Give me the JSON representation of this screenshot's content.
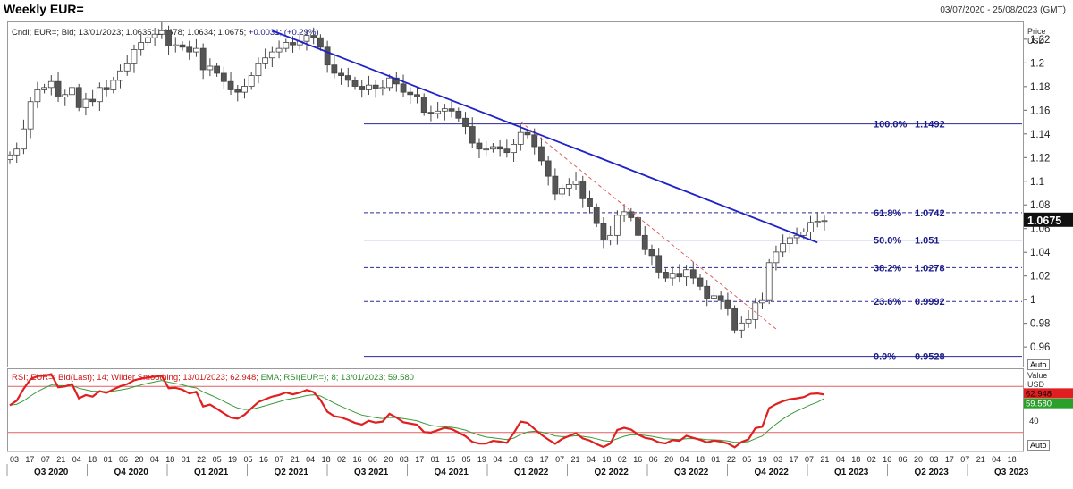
{
  "header": {
    "title": "Weekly EUR=",
    "date_range": "03/07/2020 - 25/08/2023 (GMT)"
  },
  "price_panel": {
    "legend_prefix": "Cndl; EUR=; Bid; 13/01/2023; 1.0635; 1.0678; 1.0634; 1.0675;",
    "legend_change": "+0.0031; (+0.29%)",
    "axis_title": "Price",
    "axis_unit": "USD",
    "axis_ticks": [
      "1.22",
      "1.2",
      "1.18",
      "1.16",
      "1.14",
      "1.12",
      "1.1",
      "1.08",
      "1.06",
      "1.04",
      "1.02",
      "1",
      "0.98",
      "0.96"
    ],
    "last_price_label": "1.0675",
    "auto_label": "Auto"
  },
  "rsi_panel": {
    "legend_rsi": "RSI; EUR=; Bid(Last); 14; Wilder Smoothing; 13/01/2023; 62.948;",
    "legend_ema": "EMA; RSI(EUR=); 8; 13/01/2023; 59.580",
    "axis_title": "Value",
    "axis_unit": "USD",
    "tick_40": "40",
    "rsi_last": "62.948",
    "ema_last": "59.580",
    "auto_label": "Auto"
  },
  "x_axis": {
    "weeks": [
      "03",
      "17",
      "07",
      "21",
      "04",
      "18",
      "01",
      "06",
      "20",
      "04",
      "18",
      "01",
      "22",
      "05",
      "19",
      "05",
      "16",
      "07",
      "21",
      "04",
      "18",
      "02",
      "16",
      "06",
      "20",
      "03",
      "17",
      "01",
      "15",
      "05",
      "19",
      "04",
      "18",
      "03",
      "17",
      "07",
      "21",
      "04",
      "18",
      "02",
      "16",
      "06",
      "20",
      "04",
      "18",
      "01",
      "22",
      "05",
      "19",
      "03",
      "17",
      "07",
      "21",
      "04",
      "18",
      "02",
      "16",
      "06",
      "20",
      "03",
      "17",
      "07",
      "21",
      "04",
      "18"
    ],
    "quarters": [
      "Q3 2020",
      "Q4 2020",
      "Q1 2021",
      "Q2 2021",
      "Q3 2021",
      "Q4 2021",
      "Q1 2022",
      "Q2 2022",
      "Q3 2022",
      "Q4 2022",
      "Q1 2023",
      "Q2 2023",
      "Q3 2023"
    ]
  },
  "chart_data": [
    {
      "type": "candlestick",
      "title": "Weekly EUR=",
      "ylabel": "Price USD",
      "ylim": [
        0.945,
        1.235
      ],
      "last": {
        "date": "13/01/2023",
        "open": 1.0635,
        "high": 1.0678,
        "low": 1.0634,
        "close": 1.0675,
        "change": 0.0031,
        "change_pct": 0.29
      },
      "close_series": [
        1.123,
        1.128,
        1.145,
        1.168,
        1.178,
        1.18,
        1.185,
        1.172,
        1.174,
        1.18,
        1.163,
        1.17,
        1.168,
        1.18,
        1.178,
        1.186,
        1.194,
        1.2,
        1.212,
        1.218,
        1.222,
        1.225,
        1.228,
        1.215,
        1.216,
        1.214,
        1.21,
        1.213,
        1.195,
        1.198,
        1.192,
        1.185,
        1.178,
        1.176,
        1.181,
        1.19,
        1.2,
        1.205,
        1.21,
        1.213,
        1.218,
        1.216,
        1.219,
        1.224,
        1.222,
        1.214,
        1.199,
        1.192,
        1.19,
        1.186,
        1.181,
        1.178,
        1.182,
        1.179,
        1.18,
        1.188,
        1.183,
        1.176,
        1.174,
        1.172,
        1.159,
        1.158,
        1.16,
        1.162,
        1.16,
        1.154,
        1.147,
        1.133,
        1.128,
        1.128,
        1.13,
        1.128,
        1.125,
        1.132,
        1.142,
        1.14,
        1.13,
        1.118,
        1.105,
        1.09,
        1.095,
        1.098,
        1.101,
        1.086,
        1.079,
        1.065,
        1.051,
        1.055,
        1.072,
        1.075,
        1.07,
        1.055,
        1.043,
        1.038,
        1.024,
        1.019,
        1.023,
        1.02,
        1.026,
        1.019,
        1.012,
        1.002,
        1.004,
        1.0,
        0.993,
        0.975,
        0.981,
        0.984,
        0.998,
        1.0,
        1.032,
        1.041,
        1.048,
        1.053,
        1.055,
        1.058,
        1.066,
        1.067,
        1.0675
      ],
      "fibonacci_retracement": [
        {
          "level": "100.0%",
          "price": "1.1492"
        },
        {
          "level": "61.8%",
          "price": "1.0742"
        },
        {
          "level": "50.0%",
          "price": "1.051"
        },
        {
          "level": "38.2%",
          "price": "1.0278"
        },
        {
          "level": "23.6%",
          "price": "0.9992"
        },
        {
          "level": "0.0%",
          "price": "0.9528"
        }
      ],
      "trendlines": [
        {
          "style": "solid",
          "color": "#1e22c8",
          "from": 1.228,
          "to": 1.049,
          "description": "descending trendline from 2021 high"
        },
        {
          "style": "dashed",
          "color": "#e06060",
          "from": 1.151,
          "to": 0.976,
          "description": "2022 downtrend line"
        }
      ]
    },
    {
      "type": "line",
      "title": "RSI",
      "series": [
        {
          "name": "RSI 14",
          "color": "#e02020",
          "last": 62.948
        },
        {
          "name": "EMA 8",
          "color": "#3a9a3a",
          "last": 59.58
        }
      ],
      "reference_lines": [
        70,
        30
      ]
    }
  ],
  "colors": {
    "bull_candle": "#ffffff",
    "bear_candle": "#555555",
    "fib_line": "#2a2a9a",
    "rsi": "#e02020",
    "ema": "#3a9a3a",
    "accent_text": "#1a1a8a"
  }
}
